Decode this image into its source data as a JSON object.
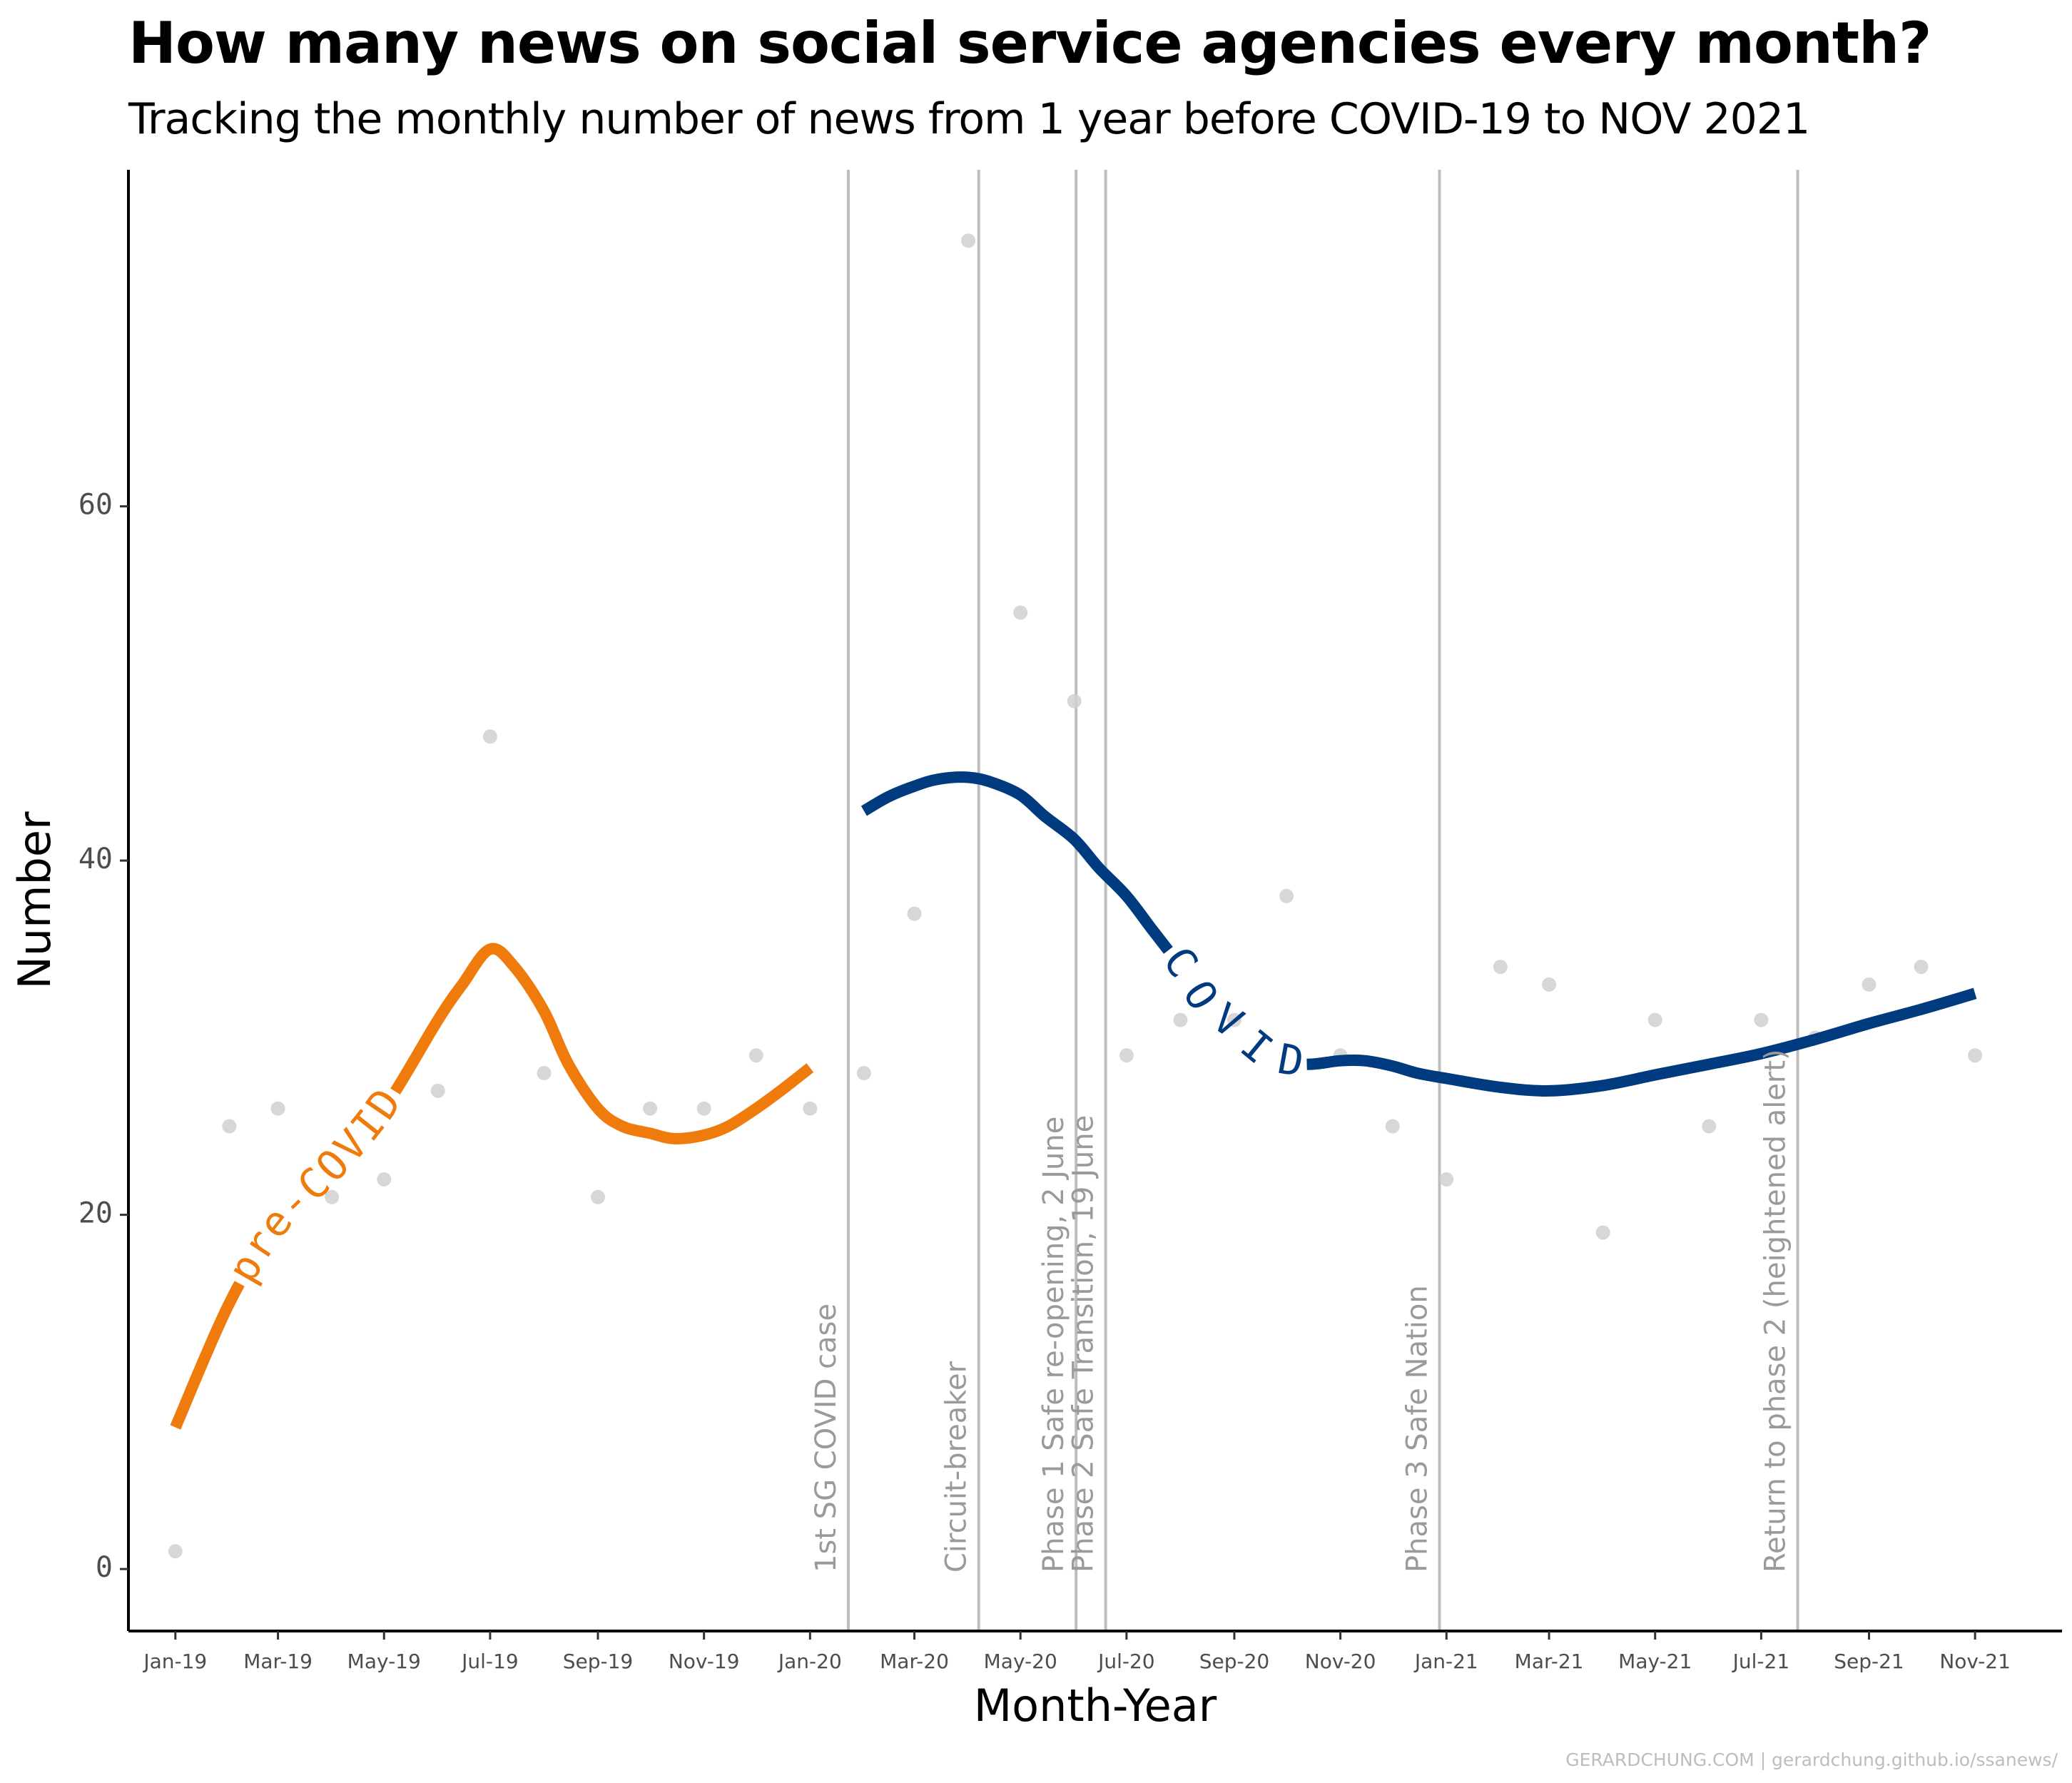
{
  "title": "How many news on social service agencies every month?",
  "subtitle": "Tracking the monthly number of news from 1 year before COVID-19 to NOV 2021",
  "caption": "GERARDCHUNG.COM | gerardchung.github.io/ssanews/",
  "colors": {
    "pre_covid": "#EE7B0B",
    "covid": "#003B7F",
    "points": "#d0d0d0",
    "event_lines": "#bdbdbd",
    "event_labels": "#9a9a9a"
  },
  "chart_data": {
    "type": "line",
    "xlabel": "Month-Year",
    "ylabel": "Number",
    "x_tick_labels": [
      "Jan-19",
      "Mar-19",
      "May-19",
      "Jul-19",
      "Sep-19",
      "Nov-19",
      "Jan-20",
      "Mar-20",
      "May-20",
      "Jul-20",
      "Sep-20",
      "Nov-20",
      "Jan-21",
      "Mar-21",
      "May-21",
      "Jul-21",
      "Sep-21",
      "Nov-21"
    ],
    "x_tick_dates": [
      "2019-01",
      "2019-03",
      "2019-05",
      "2019-07",
      "2019-09",
      "2019-11",
      "2020-01",
      "2020-03",
      "2020-05",
      "2020-07",
      "2020-09",
      "2020-11",
      "2021-01",
      "2021-03",
      "2021-05",
      "2021-07",
      "2021-09",
      "2021-11"
    ],
    "y_ticks": [
      0,
      20,
      40,
      60
    ],
    "ylim": [
      -3.5,
      79
    ],
    "xlim": [
      "2018-12-05",
      "2021-12-21"
    ],
    "grid": false,
    "points": {
      "x": [
        "2019-01",
        "2019-02",
        "2019-03",
        "2019-04",
        "2019-05",
        "2019-06",
        "2019-07",
        "2019-08",
        "2019-09",
        "2019-10",
        "2019-11",
        "2019-12",
        "2020-01",
        "2020-02",
        "2020-03",
        "2020-04",
        "2020-05",
        "2020-06",
        "2020-07",
        "2020-08",
        "2020-09",
        "2020-10",
        "2020-11",
        "2020-12",
        "2021-01",
        "2021-02",
        "2021-03",
        "2021-04",
        "2021-05",
        "2021-06",
        "2021-07",
        "2021-08",
        "2021-09",
        "2021-10",
        "2021-11"
      ],
      "y": [
        1,
        25,
        26,
        21,
        22,
        27,
        47,
        28,
        21,
        26,
        26,
        29,
        26,
        28,
        37,
        75,
        54,
        49,
        29,
        31,
        31,
        38,
        29,
        25,
        22,
        34,
        33,
        19,
        31,
        25,
        31,
        30,
        33,
        34,
        29
      ]
    },
    "series": [
      {
        "name": "pre-COVID",
        "x": [
          "2019-01-01",
          "2019-02-01",
          "2019-03-01",
          "2019-04-01",
          "2019-05-01",
          "2019-06-01",
          "2019-06-15",
          "2019-07-01",
          "2019-07-15",
          "2019-08-01",
          "2019-08-15",
          "2019-09-01",
          "2019-09-15",
          "2019-10-01",
          "2019-10-15",
          "2019-11-01",
          "2019-11-15",
          "2019-12-01",
          "2019-12-15",
          "2020-01-01"
        ],
        "y": [
          8,
          15,
          19.5,
          22.5,
          26,
          31,
          33,
          35,
          34,
          31.5,
          28.5,
          26,
          25,
          24.6,
          24.3,
          24.5,
          25,
          26,
          27,
          28.3
        ]
      },
      {
        "name": "COVID",
        "x": [
          "2020-02-01",
          "2020-02-15",
          "2020-03-01",
          "2020-03-15",
          "2020-04-01",
          "2020-04-15",
          "2020-05-01",
          "2020-05-15",
          "2020-06-01",
          "2020-06-15",
          "2020-07-01",
          "2020-07-15",
          "2020-08-01",
          "2020-08-15",
          "2020-09-01",
          "2020-09-15",
          "2020-10-01",
          "2020-10-15",
          "2020-11-01",
          "2020-11-15",
          "2020-12-01",
          "2020-12-15",
          "2021-01-01",
          "2021-02-01",
          "2021-03-01",
          "2021-04-01",
          "2021-05-01",
          "2021-06-01",
          "2021-07-01",
          "2021-08-01",
          "2021-09-01",
          "2021-10-01",
          "2021-11-01"
        ],
        "y": [
          42.8,
          43.6,
          44.2,
          44.6,
          44.7,
          44.4,
          43.7,
          42.5,
          41.2,
          39.6,
          38,
          36.2,
          34,
          31.8,
          30.5,
          29.2,
          28.6,
          28.5,
          28.7,
          28.7,
          28.4,
          28,
          27.7,
          27.2,
          27,
          27.3,
          27.9,
          28.5,
          29.1,
          29.9,
          30.8,
          31.6,
          32.5
        ]
      }
    ],
    "curve_labels": {
      "pre_covid": "pre-COVID",
      "covid": "COVID"
    },
    "events": [
      {
        "date": "2020-01-23",
        "label": "1st SG COVID case"
      },
      {
        "date": "2020-04-07",
        "label": "Circuit-breaker"
      },
      {
        "date": "2020-06-02",
        "label": "Phase 1 Safe re-opening, 2 June"
      },
      {
        "date": "2020-06-19",
        "label": "Phase 2 Safe Transition, 19 June"
      },
      {
        "date": "2020-12-28",
        "label": "Phase 3 Safe Nation"
      },
      {
        "date": "2021-07-22",
        "label": "Return to phase 2 (heightened alert)"
      }
    ]
  }
}
